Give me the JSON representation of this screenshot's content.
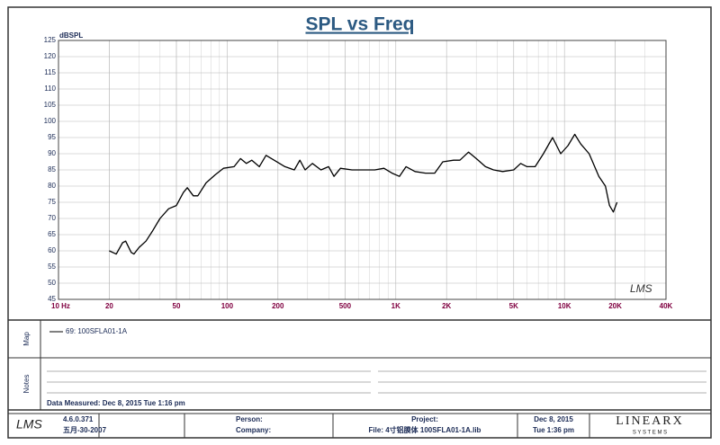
{
  "chart_data": {
    "type": "line",
    "title": "SPL vs Freq",
    "y_label": "dBSPL",
    "log_x": true,
    "grid": true,
    "minor_grid": true,
    "xlim": [
      10,
      40000
    ],
    "ylim": [
      45,
      125
    ],
    "xticks": [
      {
        "value": 10,
        "label": "10 Hz"
      },
      20,
      50,
      100,
      200,
      500,
      {
        "value": 1000,
        "label": "1K"
      },
      {
        "value": 2000,
        "label": "2K"
      },
      {
        "value": 5000,
        "label": "5K"
      },
      {
        "value": 10000,
        "label": "10K"
      },
      {
        "value": 20000,
        "label": "20K"
      },
      {
        "value": 40000,
        "label": "40K"
      }
    ],
    "yticks": [
      45,
      50,
      55,
      60,
      65,
      70,
      75,
      80,
      85,
      90,
      95,
      100,
      105,
      110,
      115,
      120,
      125
    ],
    "x": [
      20,
      22,
      24,
      25,
      27,
      28,
      30,
      33,
      36,
      40,
      45,
      50,
      55,
      58,
      63,
      67,
      75,
      85,
      95,
      110,
      120,
      130,
      140,
      155,
      170,
      190,
      220,
      250,
      270,
      290,
      320,
      360,
      400,
      430,
      470,
      550,
      650,
      750,
      850,
      950,
      1050,
      1150,
      1300,
      1500,
      1700,
      1900,
      2200,
      2400,
      2700,
      3000,
      3400,
      3800,
      4300,
      5000,
      5500,
      6000,
      6700,
      7500,
      8500,
      9500,
      10500,
      11500,
      12500,
      14000,
      16000,
      17500,
      18500,
      19500,
      20500
    ],
    "series": [
      {
        "name": "69: 100SFLA01-1A",
        "color": "#000000",
        "values": [
          60,
          59,
          62.5,
          63,
          59.5,
          59,
          61,
          63,
          66,
          70,
          73,
          74,
          78,
          79.5,
          77,
          77,
          81,
          83.5,
          85.5,
          86,
          88.5,
          87,
          88,
          86,
          89.5,
          88,
          86,
          85,
          88,
          85,
          87,
          85,
          86,
          83,
          85.5,
          85,
          85,
          85,
          85.5,
          84,
          83,
          86,
          84.5,
          84,
          84,
          87.5,
          88,
          88,
          90.5,
          88.5,
          86,
          85,
          84.5,
          85,
          87,
          86,
          86,
          90,
          95,
          90,
          92.5,
          96,
          93,
          90,
          83,
          80,
          74,
          72,
          75
        ]
      }
    ],
    "watermark": "LMS"
  },
  "map_label": "Map",
  "notes_label": "Notes",
  "data_measured": "Data Measured: Dec 8, 2015  Tue  1:16 pm",
  "footer": {
    "logo": "LMS",
    "version": "4.6.0.371",
    "version_date": "五月-30-2007",
    "person": "Person:",
    "company": "Company:",
    "project": "Project:",
    "file": "File: 4寸铝膜体 100SFLA01-1A.lib",
    "date": "Dec  8, 2015",
    "time": "Tue  1:36 pm",
    "brand": "LINEARX",
    "brand_sub": "S Y S T E M S"
  }
}
